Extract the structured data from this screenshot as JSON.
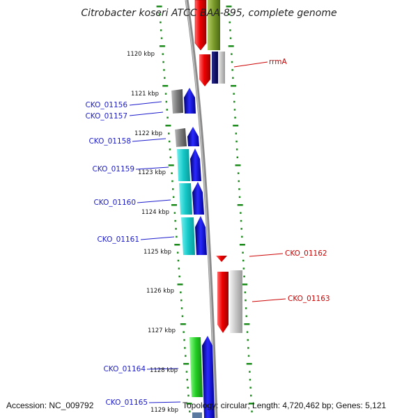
{
  "map": {
    "title": "Citrobacter koseri ATCC BAA-895, complete genome",
    "accession": "Accession: NC_009792",
    "summary": "Topology: circular; Length: 4,720,462 bp; Genes: 5,121",
    "ticks": [
      "1120 kbp",
      "1121 kbp",
      "1122 kbp",
      "1123 kbp",
      "1124 kbp",
      "1125 kbp",
      "1126 kbp",
      "1127 kbp",
      "1128 kbp",
      "1129 kbp"
    ],
    "left_labels": [
      "CKO_01156",
      "CKO_01157",
      "CKO_01158",
      "CKO_01159",
      "CKO_01160",
      "CKO_01161",
      "CKO_01164",
      "CKO_01165"
    ],
    "right_labels": [
      "rrmA",
      "CKO_01162",
      "CKO_01163"
    ],
    "colors": {
      "forward_label": "#1a1acc",
      "reverse_label": "#cc0000",
      "ruler": "#1a8a1a",
      "backbone": "#8a8a8a"
    }
  }
}
